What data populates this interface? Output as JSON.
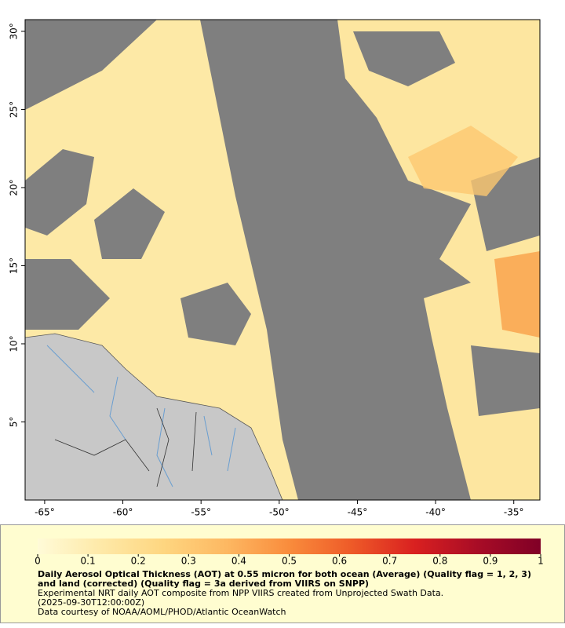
{
  "chart_data": {
    "type": "map",
    "xlim": [
      -66.25,
      -33.33
    ],
    "ylim": [
      0,
      30.75
    ],
    "xticks": [
      {
        "value": -65,
        "label": "-65°"
      },
      {
        "value": -60,
        "label": "-60°"
      },
      {
        "value": -55,
        "label": "-55°"
      },
      {
        "value": -50,
        "label": "-50°"
      },
      {
        "value": -45,
        "label": "-45°"
      },
      {
        "value": -40,
        "label": "-40°"
      },
      {
        "value": -35,
        "label": "-35°"
      }
    ],
    "yticks": [
      {
        "value": 5,
        "label": "5°"
      },
      {
        "value": 10,
        "label": "10°"
      },
      {
        "value": 15,
        "label": "15°"
      },
      {
        "value": 20,
        "label": "20°"
      },
      {
        "value": 25,
        "label": "25°"
      },
      {
        "value": 30,
        "label": "30°"
      }
    ],
    "colorbar": {
      "lim": [
        0,
        1
      ],
      "ticks": [
        0,
        0.1,
        0.2,
        0.3,
        0.4,
        0.5,
        0.6,
        0.7,
        0.8,
        0.9,
        1
      ],
      "colors": [
        "#fffbd8",
        "#fee9a8",
        "#fed680",
        "#fdb862",
        "#f98c3c",
        "#ee5a28",
        "#d92020",
        "#a80c26",
        "#800026"
      ]
    },
    "title": "Daily Aerosol Optical Thickness (AOT) at 0.55 micron for both ocean (Average) (Quality flag = 1, 2, 3) and land (corrected) (Quality flag = 3a derived from VIIRS on SNPP)",
    "subtitle": "Experimental NRT daily AOT composite from NPP VIIRS created from Unprojected Swath Data.",
    "date": "(2025-09-30T12:00:00Z)",
    "credit": "Data courtesy of NOAA/AOML/PHOD/Atlantic OceanWatch"
  }
}
